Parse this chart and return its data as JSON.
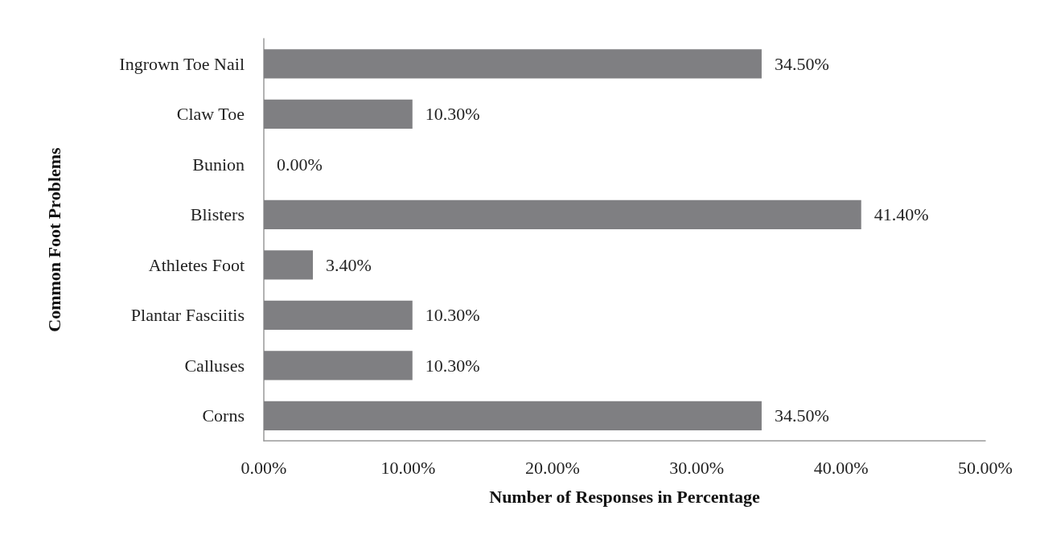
{
  "chart_data": {
    "type": "bar",
    "orientation": "horizontal",
    "xlabel": "Number of Responses in Percentage",
    "ylabel": "Common Foot Problems",
    "categories": [
      "Ingrown Toe Nail",
      "Claw Toe",
      "Bunion",
      "Blisters",
      "Athletes Foot",
      "Plantar Fasciitis",
      "Calluses",
      "Corns"
    ],
    "values": [
      34.5,
      10.3,
      0,
      41.4,
      3.4,
      10.3,
      10.3,
      34.5
    ],
    "value_labels": [
      "34.50%",
      "10.30%",
      "0.00%",
      "41.40%",
      "3.40%",
      "10.30%",
      "10.30%",
      "34.50%"
    ],
    "color": "#7f7f82",
    "xlim": [
      0,
      50
    ],
    "xticks": [
      {
        "value": 0,
        "label": "0.00%"
      },
      {
        "value": 10,
        "label": "10.00%"
      },
      {
        "value": 20,
        "label": "20.00%"
      },
      {
        "value": 30,
        "label": "30.00%"
      },
      {
        "value": 40,
        "label": "40.00%"
      },
      {
        "value": 50,
        "label": "50.00%"
      }
    ],
    "grid": false
  }
}
